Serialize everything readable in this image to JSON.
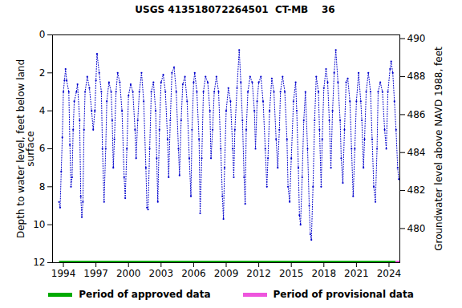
{
  "chart_data": {
    "type": "line",
    "title": "USGS 413518072264501  CT-MB    36",
    "x_label": null,
    "y_label": "Depth to water level, feet below land\nsurface",
    "y2_label": "Groundwater level above NAVD 1988, feet",
    "xlim": [
      1993,
      2025
    ],
    "xticks": [
      1994,
      1997,
      2000,
      2003,
      2006,
      2009,
      2012,
      2015,
      2018,
      2021,
      2024
    ],
    "ylim": [
      0,
      12
    ],
    "yticks": [
      0,
      2,
      4,
      6,
      8,
      10,
      12
    ],
    "y2lim": [
      490.2,
      478.2
    ],
    "y2ticks": [
      480,
      482,
      484,
      486,
      488,
      490
    ],
    "grid": false,
    "series": [
      {
        "color": "#0000cc",
        "marker": "point",
        "line_style": "dotted",
        "x": [
          1993.6,
          1993.7,
          1993.8,
          1993.9,
          1994.0,
          1994.1,
          1994.2,
          1994.3,
          1994.5,
          1994.6,
          1994.7,
          1994.8,
          1994.9,
          1995.0,
          1995.2,
          1995.3,
          1995.5,
          1995.6,
          1995.7,
          1995.8,
          1995.9,
          1996.0,
          1996.2,
          1996.4,
          1996.6,
          1996.75,
          1996.9,
          1997.0,
          1997.1,
          1997.3,
          1997.5,
          1997.6,
          1997.75,
          1997.9,
          1998.0,
          1998.2,
          1998.4,
          1998.5,
          1998.6,
          1998.7,
          1998.85,
          1999.0,
          1999.2,
          1999.4,
          1999.6,
          1999.7,
          1999.85,
          2000.0,
          2000.2,
          2000.4,
          2000.6,
          2000.7,
          2000.85,
          2001.0,
          2001.2,
          2001.4,
          2001.6,
          2001.7,
          2001.8,
          2001.95,
          2002.1,
          2002.3,
          2002.5,
          2002.6,
          2002.7,
          2002.85,
          2003.0,
          2003.2,
          2003.4,
          2003.6,
          2003.7,
          2003.85,
          2004.0,
          2004.2,
          2004.4,
          2004.6,
          2004.7,
          2004.85,
          2005.0,
          2005.2,
          2005.4,
          2005.6,
          2005.75,
          2005.85,
          2006.0,
          2006.1,
          2006.3,
          2006.5,
          2006.6,
          2006.75,
          2006.9,
          2007.1,
          2007.3,
          2007.5,
          2007.6,
          2007.75,
          2007.9,
          2008.1,
          2008.3,
          2008.5,
          2008.65,
          2008.75,
          2008.85,
          2009.0,
          2009.2,
          2009.4,
          2009.6,
          2009.7,
          2009.8,
          2010.0,
          2010.2,
          2010.35,
          2010.5,
          2010.65,
          2010.75,
          2010.85,
          2011.0,
          2011.2,
          2011.4,
          2011.6,
          2011.7,
          2011.85,
          2012.0,
          2012.2,
          2012.4,
          2012.6,
          2012.75,
          2012.85,
          2013.0,
          2013.2,
          2013.4,
          2013.6,
          2013.75,
          2013.9,
          2014.0,
          2014.2,
          2014.4,
          2014.6,
          2014.7,
          2014.85,
          2015.0,
          2015.2,
          2015.4,
          2015.5,
          2015.65,
          2015.75,
          2015.85,
          2016.0,
          2016.15,
          2016.3,
          2016.5,
          2016.65,
          2016.75,
          2016.85,
          2017.0,
          2017.15,
          2017.3,
          2017.5,
          2017.6,
          2017.75,
          2017.85,
          2018.0,
          2018.2,
          2018.35,
          2018.5,
          2018.65,
          2018.8,
          2018.95,
          2019.1,
          2019.3,
          2019.5,
          2019.6,
          2019.75,
          2019.9,
          2020.05,
          2020.2,
          2020.4,
          2020.55,
          2020.7,
          2020.85,
          2021.0,
          2021.2,
          2021.4,
          2021.5,
          2021.65,
          2021.75,
          2021.9,
          2022.1,
          2022.3,
          2022.45,
          2022.6,
          2022.75,
          2022.9,
          2023.0,
          2023.2,
          2023.4,
          2023.6,
          2023.75,
          2023.9,
          2024.1,
          2024.2,
          2024.35,
          2024.5,
          2024.65,
          2024.8,
          2024.9
        ],
        "values": [
          8.8,
          9.1,
          7.2,
          5.4,
          3.0,
          2.4,
          1.8,
          2.4,
          3.0,
          5.8,
          8.0,
          7.5,
          5.0,
          3.5,
          3.0,
          2.6,
          4.5,
          8.5,
          9.6,
          8.8,
          5.0,
          3.0,
          2.2,
          2.8,
          4.0,
          5.0,
          4.0,
          2.4,
          1.0,
          2.0,
          3.0,
          6.0,
          8.8,
          6.0,
          3.5,
          2.5,
          3.0,
          4.5,
          7.0,
          5.5,
          3.0,
          2.0,
          2.5,
          4.0,
          7.5,
          8.6,
          6.0,
          3.2,
          2.6,
          3.0,
          5.0,
          6.5,
          4.5,
          3.0,
          2.0,
          3.5,
          7.0,
          9.1,
          9.2,
          6.0,
          3.0,
          2.5,
          4.0,
          6.5,
          8.8,
          5.0,
          2.5,
          2.1,
          3.0,
          5.5,
          7.5,
          4.5,
          2.0,
          1.7,
          3.0,
          6.0,
          7.4,
          4.5,
          2.6,
          2.2,
          3.5,
          6.5,
          8.5,
          5.0,
          2.5,
          2.0,
          3.0,
          5.5,
          9.4,
          6.5,
          3.0,
          2.2,
          2.5,
          4.0,
          6.5,
          5.0,
          3.0,
          2.2,
          3.0,
          6.0,
          8.5,
          9.7,
          7.0,
          4.0,
          2.8,
          3.5,
          6.0,
          7.5,
          5.0,
          2.8,
          0.8,
          2.5,
          4.5,
          7.5,
          8.9,
          5.0,
          3.0,
          2.2,
          2.5,
          4.0,
          6.0,
          3.5,
          2.5,
          2.2,
          3.5,
          6.0,
          8.0,
          6.5,
          4.0,
          2.3,
          3.0,
          5.5,
          7.0,
          5.0,
          3.0,
          2.2,
          3.0,
          5.5,
          8.0,
          8.8,
          6.5,
          3.5,
          2.5,
          4.0,
          7.0,
          9.5,
          10.0,
          7.5,
          4.5,
          3.0,
          6.0,
          9.0,
          10.5,
          10.8,
          8.0,
          4.5,
          2.2,
          3.0,
          5.0,
          8.0,
          5.5,
          2.8,
          1.8,
          2.5,
          4.5,
          7.0,
          4.0,
          2.0,
          0.8,
          2.5,
          4.5,
          6.5,
          7.8,
          5.0,
          2.5,
          2.3,
          3.5,
          6.0,
          8.5,
          6.0,
          3.5,
          2.0,
          3.5,
          4.5,
          7.0,
          5.5,
          3.0,
          2.0,
          3.0,
          5.5,
          8.0,
          8.8,
          6.0,
          3.0,
          2.5,
          3.0,
          5.0,
          6.0,
          3.0,
          1.8,
          1.4,
          2.0,
          3.5,
          5.0,
          7.0,
          7.6
        ]
      }
    ],
    "periods": [
      {
        "name": "Period of approved data",
        "color": "#00aa00",
        "start": 1993.6,
        "end": 2024.6
      },
      {
        "name": "Period of provisional data",
        "color": "#ee55dd",
        "start": 2024.6,
        "end": 2025
      }
    ]
  }
}
